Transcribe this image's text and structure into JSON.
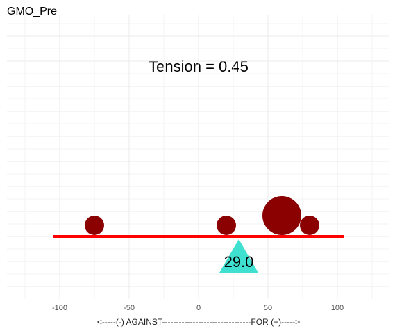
{
  "chart_data": {
    "type": "balance",
    "title": "GMO_Pre",
    "annotation": "Tension = 0.45",
    "x_label": "<-----(-) AGAINST--------------------------------FOR (+)----->",
    "xlim": [
      -138,
      137
    ],
    "xticks": [
      -100,
      -50,
      0,
      50,
      100
    ],
    "grid": true,
    "x": [
      -75,
      20,
      60,
      80
    ],
    "sizes": [
      1,
      1,
      4,
      1
    ],
    "color": "#8b0000",
    "beam_range": [
      -105,
      105
    ],
    "beam_color": "#ff0000",
    "fulcrum": {
      "value": 29,
      "label": "29.0"
    },
    "fulcrum_color": "#40e0d0"
  }
}
